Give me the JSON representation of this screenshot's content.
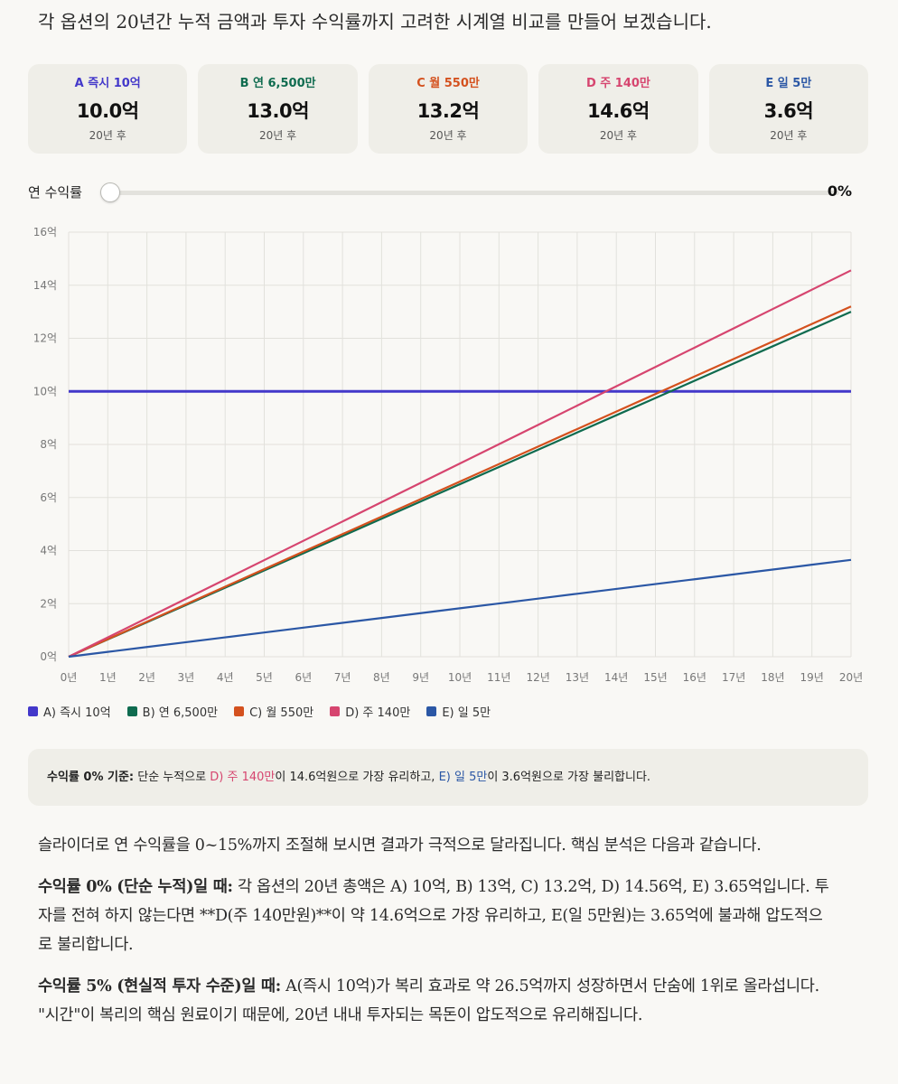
{
  "intro": "각 옵션의 20년간 누적 금액과 투자 수익률까지 고려한 시계열 비교를 만들어 보겠습니다.",
  "cards": [
    {
      "label": "A 즉시 10억",
      "value": "10.0억",
      "sub": "20년 후",
      "color": "#4338ca"
    },
    {
      "label": "B 연 6,500만",
      "value": "13.0억",
      "sub": "20년 후",
      "color": "#0f6b4f"
    },
    {
      "label": "C 월 550만",
      "value": "13.2억",
      "sub": "20년 후",
      "color": "#d4511e"
    },
    {
      "label": "D 주 140만",
      "value": "14.6억",
      "sub": "20년 후",
      "color": "#d6456f"
    },
    {
      "label": "E 일 5만",
      "value": "3.6억",
      "sub": "20년 후",
      "color": "#2b57a5"
    }
  ],
  "slider": {
    "label": "연 수익률",
    "value": "0%",
    "percent": 0,
    "min": 0,
    "max": 15
  },
  "chart_data": {
    "type": "line",
    "x": [
      0,
      1,
      2,
      3,
      4,
      5,
      6,
      7,
      8,
      9,
      10,
      11,
      12,
      13,
      14,
      15,
      16,
      17,
      18,
      19,
      20
    ],
    "x_tick_labels": [
      "0년",
      "1년",
      "2년",
      "3년",
      "4년",
      "5년",
      "6년",
      "7년",
      "8년",
      "9년",
      "10년",
      "11년",
      "12년",
      "13년",
      "14년",
      "15년",
      "16년",
      "17년",
      "18년",
      "19년",
      "20년"
    ],
    "y_tick_labels": [
      "0억",
      "2억",
      "4억",
      "6억",
      "8억",
      "10억",
      "12억",
      "14억",
      "16억"
    ],
    "y_ticks": [
      0,
      2,
      4,
      6,
      8,
      10,
      12,
      14,
      16
    ],
    "ylim": [
      0,
      16
    ],
    "xlim": [
      0,
      20
    ],
    "grid": true,
    "series": [
      {
        "name": "A) 즉시 10억",
        "color": "#4338ca",
        "values": [
          10,
          10,
          10,
          10,
          10,
          10,
          10,
          10,
          10,
          10,
          10,
          10,
          10,
          10,
          10,
          10,
          10,
          10,
          10,
          10,
          10
        ]
      },
      {
        "name": "B) 연 6,500만",
        "color": "#0f6b4f",
        "values": [
          0,
          0.65,
          1.3,
          1.95,
          2.6,
          3.25,
          3.9,
          4.55,
          5.2,
          5.85,
          6.5,
          7.15,
          7.8,
          8.45,
          9.1,
          9.75,
          10.4,
          11.05,
          11.7,
          12.35,
          13.0
        ]
      },
      {
        "name": "C) 월 550만",
        "color": "#d4511e",
        "values": [
          0,
          0.66,
          1.32,
          1.98,
          2.64,
          3.3,
          3.96,
          4.62,
          5.28,
          5.94,
          6.6,
          7.26,
          7.92,
          8.58,
          9.24,
          9.9,
          10.56,
          11.22,
          11.88,
          12.54,
          13.2
        ]
      },
      {
        "name": "D) 주 140만",
        "color": "#d6456f",
        "values": [
          0,
          0.728,
          1.456,
          2.184,
          2.912,
          3.64,
          4.368,
          5.096,
          5.824,
          6.552,
          7.28,
          8.008,
          8.736,
          9.464,
          10.192,
          10.92,
          11.648,
          12.376,
          13.104,
          13.832,
          14.56
        ]
      },
      {
        "name": "E) 일 5만",
        "color": "#2b57a5",
        "values": [
          0,
          0.1825,
          0.365,
          0.5475,
          0.73,
          0.9125,
          1.095,
          1.2775,
          1.46,
          1.6425,
          1.825,
          2.0075,
          2.19,
          2.3725,
          2.555,
          2.7375,
          2.92,
          3.1025,
          3.285,
          3.4675,
          3.65
        ]
      }
    ]
  },
  "summary": {
    "prefix": "수익률 0% 기준:",
    "t1": " 단순 누적으로 ",
    "best": "D) 주 140만",
    "best_color": "#d6456f",
    "t2": "이 14.6억원으로 가장 유리하고, ",
    "worst": "E) 일 5만",
    "worst_color": "#2b57a5",
    "t3": "이 3.6억원으로 가장 불리합니다."
  },
  "body": {
    "p1": "슬라이더로 연 수익률을 0~15%까지 조절해 보시면 결과가 극적으로 달라집니다. 핵심 분석은 다음과 같습니다.",
    "p2_bold": "수익률 0% (단순 누적)일 때:",
    "p2": " 각 옵션의 20년 총액은 A) 10억, B) 13억, C) 13.2억, D) 14.56억, E) 3.65억입니다. 투자를 전혀 하지 않는다면 **D(주 140만원)**이 약 14.6억으로 가장 유리하고, E(일 5만원)는 3.65억에 불과해 압도적으로 불리합니다.",
    "p3_bold": "수익률 5% (현실적 투자 수준)일 때:",
    "p3": " A(즉시 10억)가 복리 효과로 약 26.5억까지 성장하면서 단숨에 1위로 올라섭니다. \"시간\"이 복리의 핵심 원료이기 때문에, 20년 내내 투자되는 목돈이 압도적으로 유리해집니다."
  }
}
